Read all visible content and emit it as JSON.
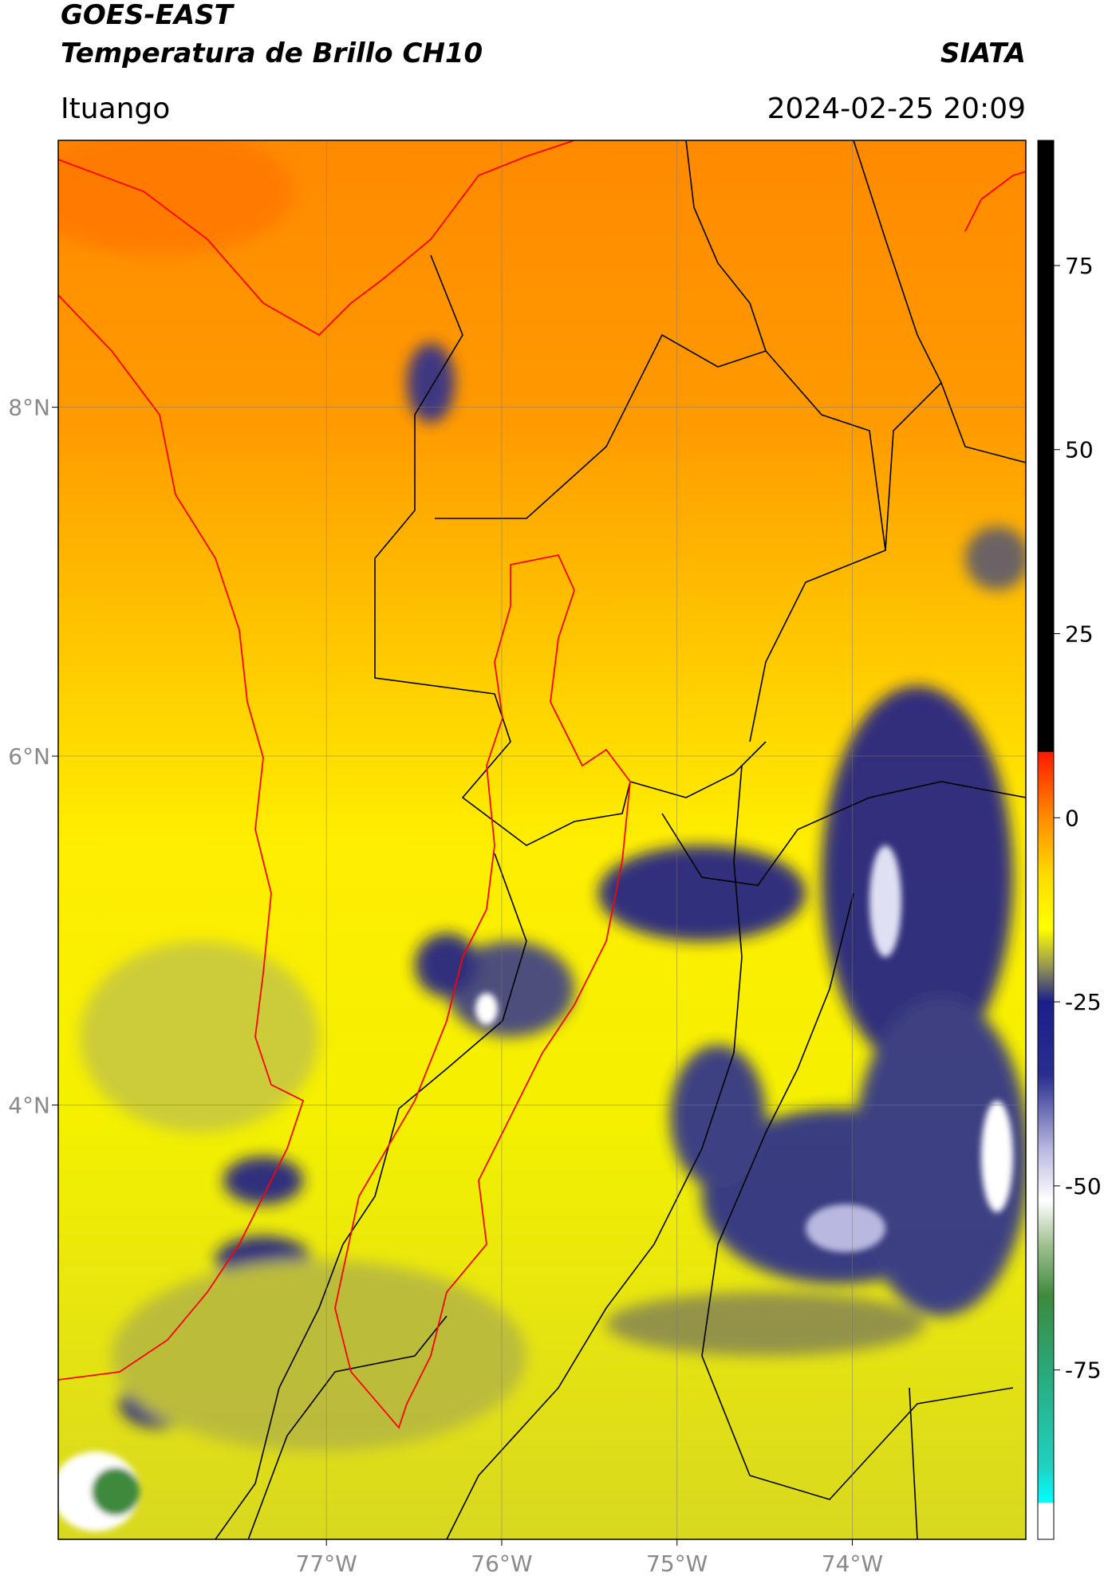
{
  "header": {
    "title": "GOES-EAST",
    "subtitle": "Temperatura de Brillo CH10",
    "source": "SIATA",
    "location": "Ituango",
    "datetime": "2024-02-25 20:09"
  },
  "map": {
    "xlim": [
      -78.53,
      -73.01
    ],
    "ylim": [
      1.51,
      9.53
    ],
    "xticks": [
      {
        "value": -77,
        "label": "77°W"
      },
      {
        "value": -76,
        "label": "76°W"
      },
      {
        "value": -75,
        "label": "75°W"
      },
      {
        "value": -74,
        "label": "74°W"
      }
    ],
    "yticks": [
      {
        "value": 8,
        "label": "8°N"
      },
      {
        "value": 6,
        "label": "6°N"
      },
      {
        "value": 4,
        "label": "4°N"
      }
    ],
    "grid": true
  },
  "colorbar": {
    "clim": [
      -98,
      92
    ],
    "ticks": [
      75,
      50,
      25,
      0,
      -25,
      -50,
      -75
    ],
    "colormap": [
      {
        "value": 92,
        "color": "#000000"
      },
      {
        "value": 9,
        "color": "#000000"
      },
      {
        "value": 8.9,
        "color": "#ff1a00"
      },
      {
        "value": 0,
        "color": "#ff8c00"
      },
      {
        "value": -8,
        "color": "#ffdd00"
      },
      {
        "value": -15,
        "color": "#ffff00"
      },
      {
        "value": -20,
        "color": "#9a9a50"
      },
      {
        "value": -25,
        "color": "#1a1f8a"
      },
      {
        "value": -35,
        "color": "#2a2e90"
      },
      {
        "value": -45,
        "color": "#b8b8e0"
      },
      {
        "value": -52,
        "color": "#ffffff"
      },
      {
        "value": -58,
        "color": "#a0c090"
      },
      {
        "value": -65,
        "color": "#3d8a3d"
      },
      {
        "value": -75,
        "color": "#2aa87a"
      },
      {
        "value": -88,
        "color": "#20d0c0"
      },
      {
        "value": -93,
        "color": "#00ffff"
      },
      {
        "value": -93.1,
        "color": "#ffffff"
      },
      {
        "value": -98,
        "color": "#ffffff"
      }
    ]
  }
}
